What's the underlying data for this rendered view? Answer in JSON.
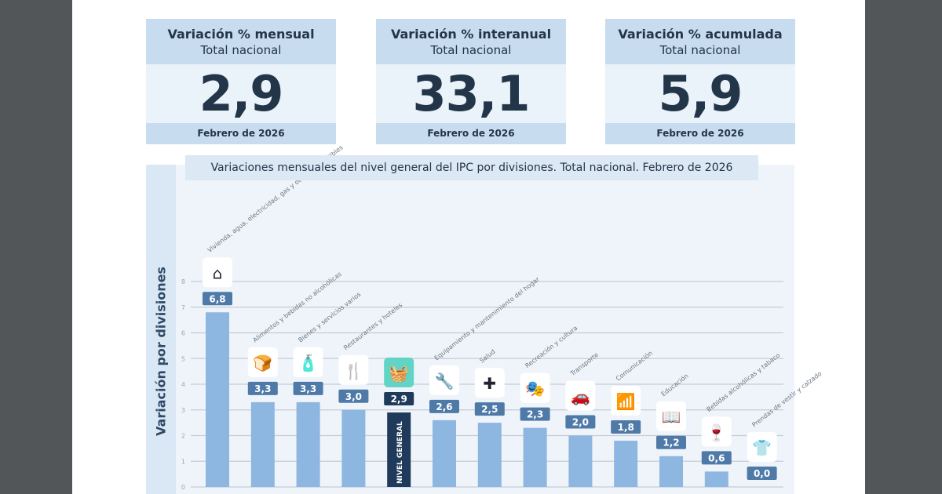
{
  "cards": [
    {
      "title": "Variación % mensual",
      "subtitle": "Total nacional",
      "value": "2,9",
      "date": "Febrero de 2026"
    },
    {
      "title": "Variación % interanual",
      "subtitle": "Total nacional",
      "value": "33,1",
      "date": "Febrero de 2026"
    },
    {
      "title": "Variación % acumulada",
      "subtitle": "Total nacional",
      "value": "5,9",
      "date": "Febrero de 2026"
    }
  ],
  "colors": {
    "bar": "#8db6e0",
    "highlight": "#1f3a5a",
    "pill": "#4f7aa8",
    "teal": "#62d4c6"
  },
  "chart_data": {
    "type": "bar",
    "title": "Variaciones mensuales del nivel general del IPC por divisiones. Total nacional. Febrero de 2026",
    "ylabel": "Variación por divisiones",
    "ylim": [
      0,
      8
    ],
    "yticks": [
      "0",
      "1",
      "2",
      "3",
      "4",
      "5",
      "6",
      "7",
      "8"
    ],
    "grid": true,
    "categories": [
      "Vivienda, agua, electricidad, gas y otros combustibles",
      "Alimentos y bebidas no alcohólicas",
      "Bienes y servicios varios",
      "Restaurantes y hoteles",
      "NIVEL GENERAL",
      "Equipamiento y mantenimiento del hogar",
      "Salud",
      "Recreación y cultura",
      "Transporte",
      "Comunicación",
      "Educación",
      "Bebidas alcohólicas y tabaco",
      "Prendas de vestir y calzado"
    ],
    "values": [
      6.8,
      3.3,
      3.3,
      3.0,
      2.9,
      2.6,
      2.5,
      2.3,
      2.0,
      1.8,
      1.2,
      0.6,
      0.0
    ],
    "labels": [
      "6,8",
      "3,3",
      "3,3",
      "3,0",
      "2,9",
      "2,6",
      "2,5",
      "2,3",
      "2,0",
      "1,8",
      "1,2",
      "0,6",
      "0,0"
    ],
    "icons": [
      "house-energy-icon",
      "food-icon",
      "goods-services-icon",
      "restaurant-hotel-icon",
      "basket-icon",
      "tools-icon",
      "health-cross-icon",
      "theater-masks-icon",
      "car-icon",
      "wifi-icon",
      "book-icon",
      "bottle-glass-icon",
      "shirt-icon"
    ],
    "highlight_index": 4
  }
}
